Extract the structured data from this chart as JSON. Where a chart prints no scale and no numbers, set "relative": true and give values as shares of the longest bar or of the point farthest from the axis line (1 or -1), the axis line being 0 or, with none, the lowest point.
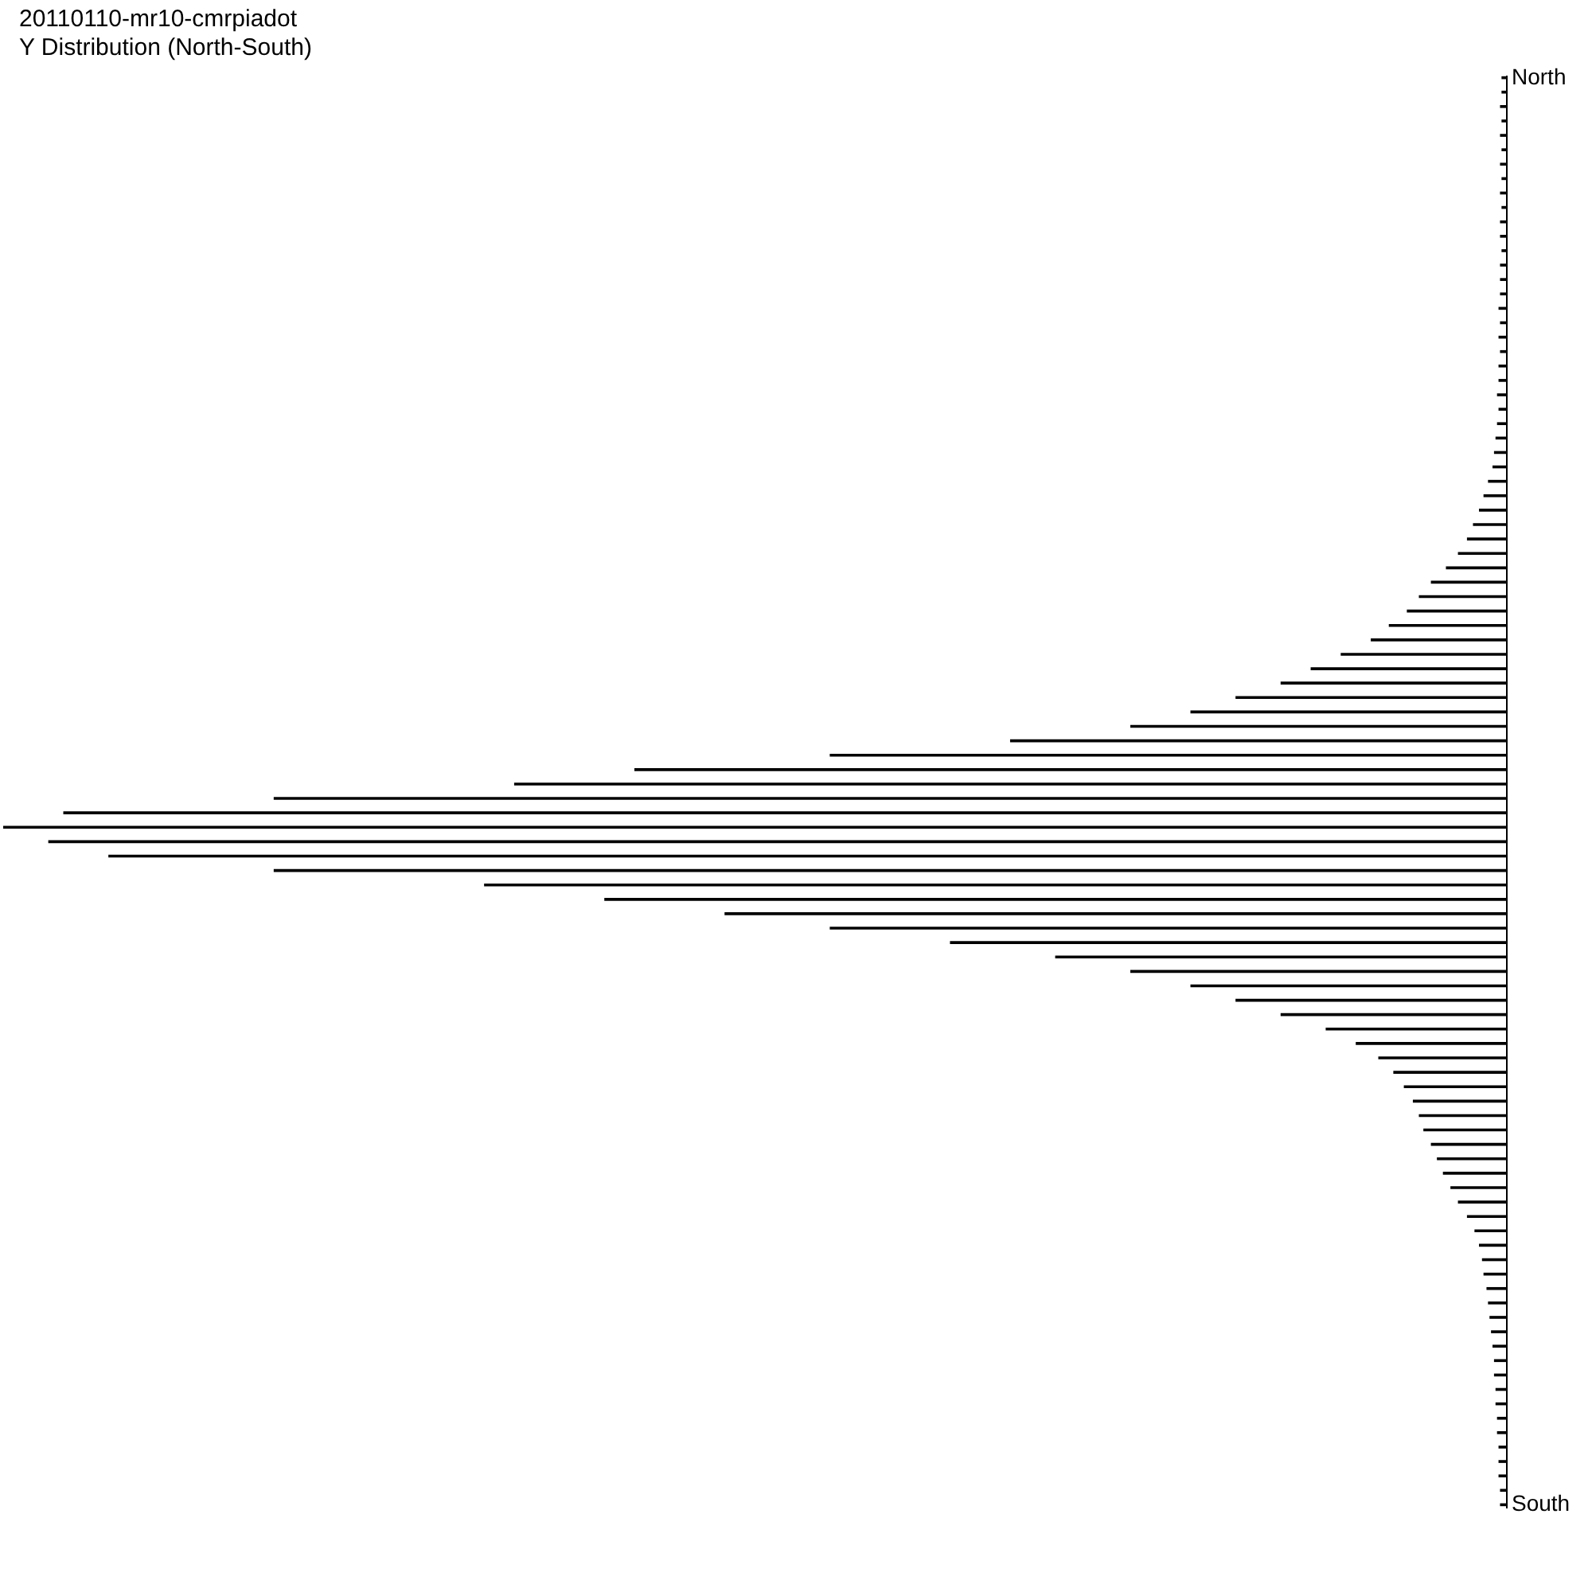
{
  "chart_data": {
    "type": "bar",
    "orientation": "horizontal",
    "relative": true,
    "title": "20110110-mr10-cmrpiadot",
    "subtitle": "Y Distribution (North-South)",
    "color": "#000000",
    "categories": [
      "North",
      null,
      null,
      null,
      null,
      null,
      null,
      null,
      null,
      null,
      null,
      null,
      null,
      null,
      null,
      null,
      null,
      null,
      null,
      null,
      null,
      null,
      null,
      null,
      null,
      null,
      null,
      null,
      null,
      null,
      null,
      null,
      null,
      null,
      null,
      null,
      null,
      null,
      null,
      null,
      null,
      null,
      null,
      null,
      null,
      null,
      null,
      null,
      null,
      null,
      null,
      null,
      null,
      null,
      null,
      null,
      null,
      null,
      null,
      null,
      null,
      null,
      null,
      null,
      null,
      null,
      null,
      null,
      null,
      null,
      null,
      null,
      null,
      null,
      null,
      null,
      null,
      null,
      null,
      null,
      null,
      null,
      null,
      null,
      null,
      null,
      null,
      null,
      null,
      null,
      null,
      null,
      null,
      null,
      null,
      null,
      null,
      null,
      null,
      "South"
    ],
    "values": [
      0.003,
      0.003,
      0.004,
      0.003,
      0.004,
      0.003,
      0.004,
      0.003,
      0.004,
      0.003,
      0.004,
      0.004,
      0.003,
      0.004,
      0.004,
      0.004,
      0.005,
      0.004,
      0.005,
      0.004,
      0.005,
      0.005,
      0.006,
      0.005,
      0.006,
      0.007,
      0.008,
      0.009,
      0.012,
      0.015,
      0.018,
      0.022,
      0.026,
      0.032,
      0.04,
      0.05,
      0.058,
      0.066,
      0.078,
      0.09,
      0.11,
      0.13,
      0.15,
      0.18,
      0.21,
      0.25,
      0.33,
      0.45,
      0.58,
      0.66,
      0.82,
      0.96,
      1.0,
      0.97,
      0.93,
      0.82,
      0.68,
      0.6,
      0.52,
      0.45,
      0.37,
      0.3,
      0.25,
      0.21,
      0.18,
      0.15,
      0.12,
      0.1,
      0.085,
      0.075,
      0.068,
      0.062,
      0.058,
      0.055,
      0.05,
      0.046,
      0.042,
      0.037,
      0.032,
      0.026,
      0.021,
      0.018,
      0.016,
      0.015,
      0.013,
      0.012,
      0.011,
      0.01,
      0.009,
      0.008,
      0.008,
      0.007,
      0.007,
      0.006,
      0.006,
      0.005,
      0.005,
      0.005,
      0.004,
      0.004
    ]
  }
}
